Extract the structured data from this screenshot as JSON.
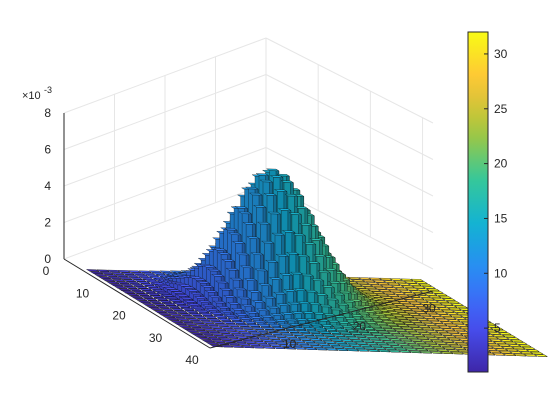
{
  "chart_data": {
    "type": "bar3",
    "description_free": true,
    "x_axis": {
      "ticks": [
        10,
        20,
        30
      ],
      "lim": [
        0,
        32
      ]
    },
    "y_axis": {
      "ticks": [
        0,
        10,
        20,
        30,
        40
      ],
      "lim": [
        0,
        40
      ]
    },
    "z_axis": {
      "ticks": [
        0,
        2,
        4,
        6,
        8
      ],
      "lim": [
        0,
        8
      ],
      "multiplier_label": "×10",
      "multiplier_exponent": "-3"
    },
    "colorbar": {
      "ticks": [
        5,
        10,
        15,
        20,
        25,
        30
      ],
      "lim": [
        1,
        32
      ],
      "colormap": "parula"
    },
    "surface": {
      "grid_x_count": 32,
      "grid_y_count": 32,
      "peak_x": 14,
      "peak_y": 17,
      "peak_value": 0.0072,
      "sigma_x": 3.6,
      "sigma_y": 4.4,
      "base_value": 0.0
    },
    "grid": true
  }
}
